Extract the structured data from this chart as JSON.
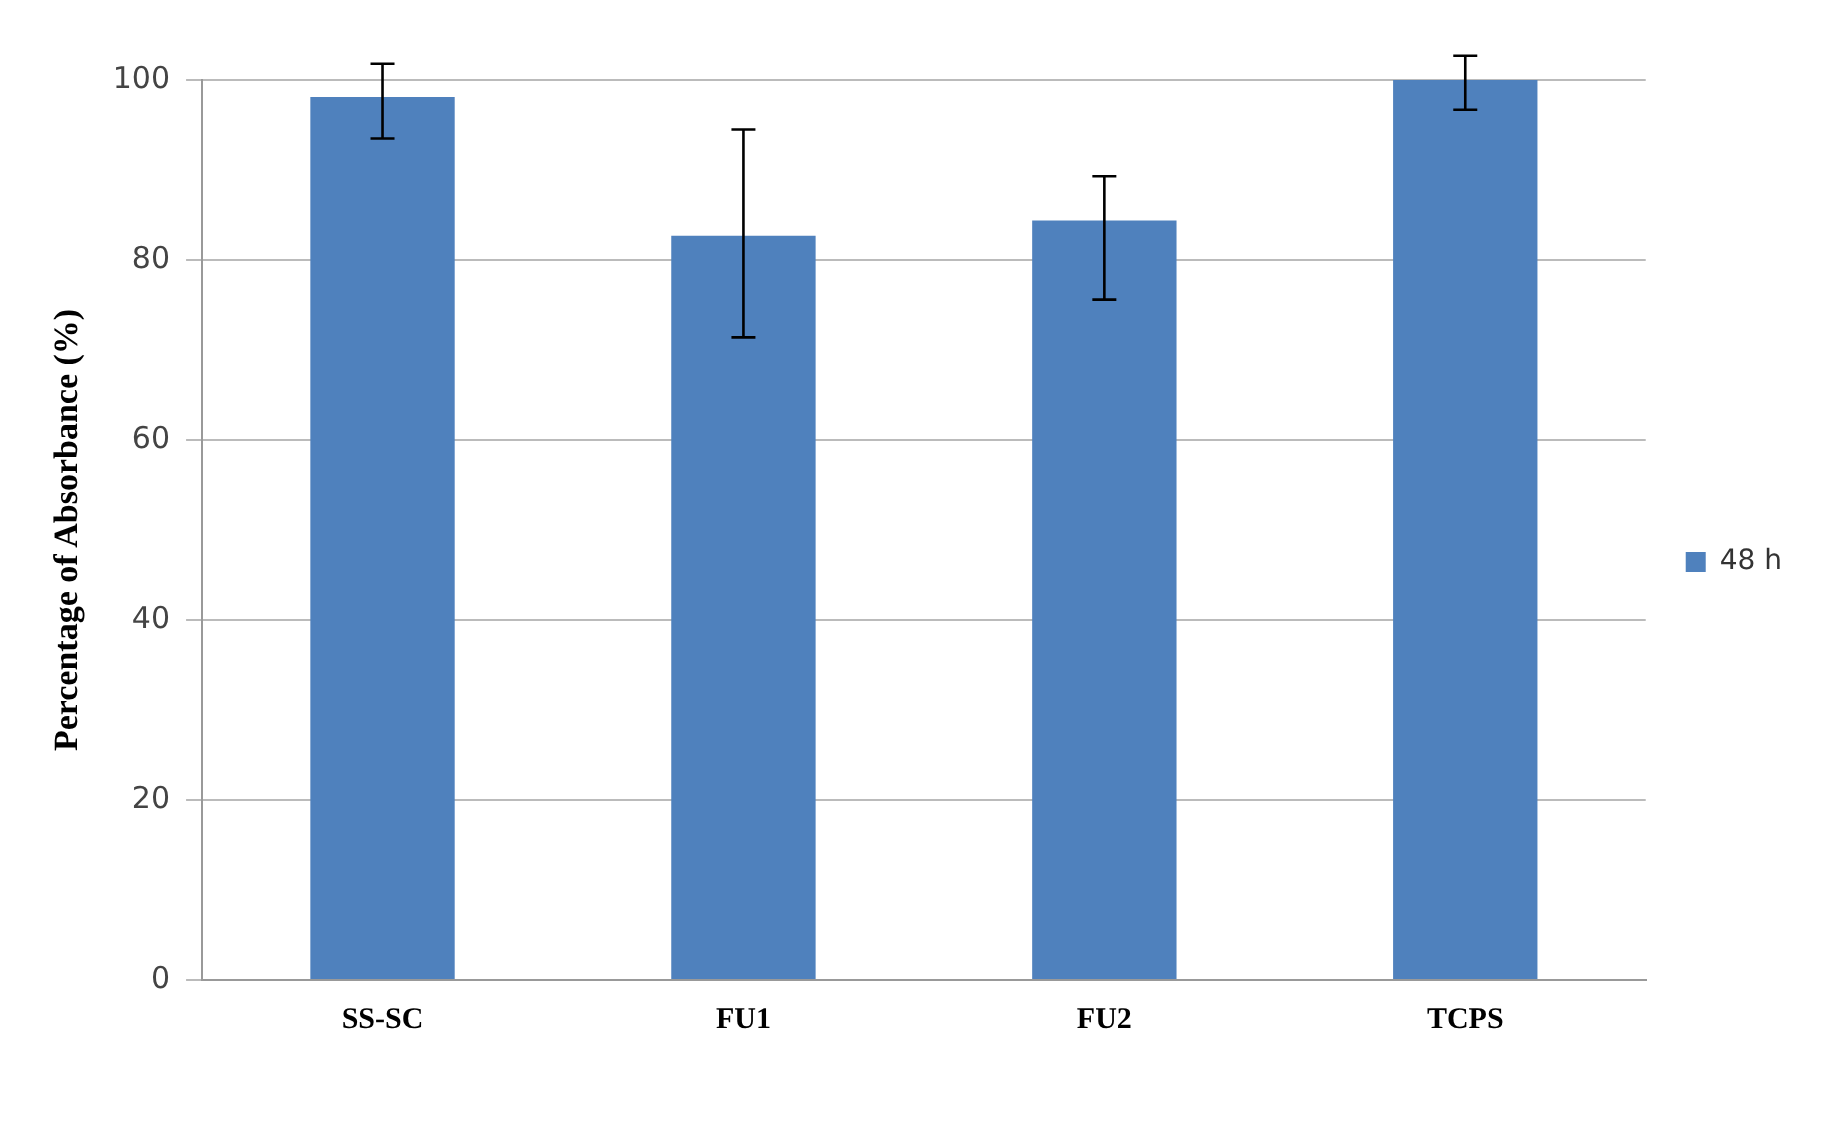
{
  "chart_data": {
    "type": "bar",
    "ylabel": "Percentage of Absorbance (%)",
    "categories": [
      "SS-SC",
      "FU1",
      "FU2",
      "TCPS"
    ],
    "series": [
      {
        "name": "48 h",
        "color": "#4f81bd",
        "values": [
          98.1,
          82.7,
          84.4,
          100
        ],
        "errors": [
          [
            93.5,
            101.8
          ],
          [
            71.4,
            94.5
          ],
          [
            75.6,
            89.3
          ],
          [
            96.7,
            102.7
          ]
        ]
      }
    ],
    "ylim": [
      0,
      100
    ],
    "yticks": [
      0,
      20,
      40,
      60,
      80,
      100
    ],
    "grid": "y",
    "legend": "right"
  }
}
